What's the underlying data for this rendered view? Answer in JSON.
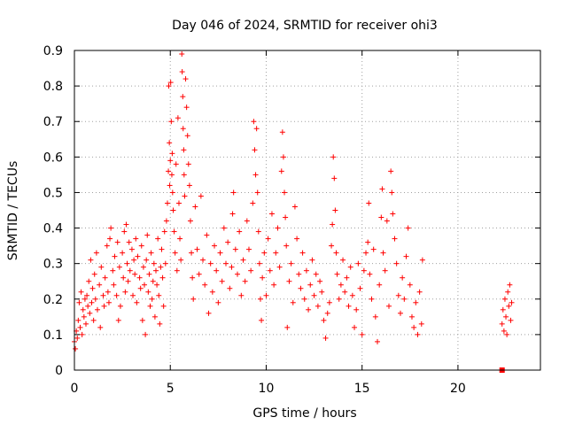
{
  "chart_data": {
    "type": "scatter",
    "title": "Day 046 of 2024, SRMTID for receiver ohi3",
    "xlabel": "GPS time / hours",
    "ylabel": "SRMTID / TECUs",
    "xlim": [
      0,
      24.3
    ],
    "ylim": [
      0,
      0.9
    ],
    "xticks": [
      0,
      5,
      10,
      15,
      20
    ],
    "xtick_labels": [
      "0",
      "5",
      "10",
      "15",
      "20"
    ],
    "yticks": [
      0,
      0.1,
      0.2,
      0.3,
      0.4,
      0.5,
      0.6,
      0.7,
      0.8,
      0.9
    ],
    "ytick_labels": [
      "0",
      "0.1",
      "0.2",
      "0.3",
      "0.4",
      "0.5",
      "0.6",
      "0.7",
      "0.8",
      "0.9"
    ],
    "grid": true,
    "marker": "+",
    "color": "#ff0000",
    "series": [
      {
        "name": "SRMTID",
        "points": [
          [
            0.0,
            0.08
          ],
          [
            0.05,
            0.06
          ],
          [
            0.1,
            0.11
          ],
          [
            0.15,
            0.09
          ],
          [
            0.2,
            0.14
          ],
          [
            0.25,
            0.19
          ],
          [
            0.3,
            0.12
          ],
          [
            0.35,
            0.22
          ],
          [
            0.4,
            0.1
          ],
          [
            0.45,
            0.17
          ],
          [
            0.5,
            0.15
          ],
          [
            0.55,
            0.2
          ],
          [
            0.6,
            0.13
          ],
          [
            0.65,
            0.21
          ],
          [
            0.7,
            0.18
          ],
          [
            0.75,
            0.25
          ],
          [
            0.8,
            0.16
          ],
          [
            0.85,
            0.31
          ],
          [
            0.9,
            0.19
          ],
          [
            0.95,
            0.23
          ],
          [
            1.0,
            0.14
          ],
          [
            1.05,
            0.27
          ],
          [
            1.1,
            0.2
          ],
          [
            1.15,
            0.33
          ],
          [
            1.2,
            0.17
          ],
          [
            1.3,
            0.24
          ],
          [
            1.35,
            0.12
          ],
          [
            1.4,
            0.29
          ],
          [
            1.5,
            0.21
          ],
          [
            1.55,
            0.18
          ],
          [
            1.6,
            0.26
          ],
          [
            1.7,
            0.35
          ],
          [
            1.75,
            0.22
          ],
          [
            1.8,
            0.19
          ],
          [
            1.85,
            0.37
          ],
          [
            1.9,
            0.4
          ],
          [
            2.0,
            0.28
          ],
          [
            2.05,
            0.24
          ],
          [
            2.1,
            0.32
          ],
          [
            2.2,
            0.21
          ],
          [
            2.25,
            0.36
          ],
          [
            2.3,
            0.14
          ],
          [
            2.35,
            0.29
          ],
          [
            2.4,
            0.18
          ],
          [
            2.5,
            0.33
          ],
          [
            2.55,
            0.26
          ],
          [
            2.6,
            0.39
          ],
          [
            2.65,
            0.22
          ],
          [
            2.7,
            0.41
          ],
          [
            2.75,
            0.3
          ],
          [
            2.8,
            0.25
          ],
          [
            2.85,
            0.36
          ],
          [
            2.9,
            0.28
          ],
          [
            3.0,
            0.34
          ],
          [
            3.05,
            0.21
          ],
          [
            3.1,
            0.31
          ],
          [
            3.15,
            0.27
          ],
          [
            3.2,
            0.37
          ],
          [
            3.25,
            0.19
          ],
          [
            3.3,
            0.32
          ],
          [
            3.4,
            0.26
          ],
          [
            3.45,
            0.23
          ],
          [
            3.5,
            0.35
          ],
          [
            3.55,
            0.14
          ],
          [
            3.6,
            0.29
          ],
          [
            3.65,
            0.24
          ],
          [
            3.7,
            0.1
          ],
          [
            3.75,
            0.31
          ],
          [
            3.8,
            0.38
          ],
          [
            3.85,
            0.22
          ],
          [
            3.9,
            0.27
          ],
          [
            3.95,
            0.18
          ],
          [
            4.0,
            0.33
          ],
          [
            4.05,
            0.2
          ],
          [
            4.1,
            0.25
          ],
          [
            4.15,
            0.3
          ],
          [
            4.2,
            0.15
          ],
          [
            4.25,
            0.28
          ],
          [
            4.3,
            0.24
          ],
          [
            4.35,
            0.37
          ],
          [
            4.4,
            0.21
          ],
          [
            4.45,
            0.13
          ],
          [
            4.5,
            0.29
          ],
          [
            4.55,
            0.34
          ],
          [
            4.6,
            0.26
          ],
          [
            4.65,
            0.18
          ],
          [
            4.7,
            0.39
          ],
          [
            4.75,
            0.3
          ],
          [
            4.8,
            0.42
          ],
          [
            4.85,
            0.47
          ],
          [
            4.9,
            0.56
          ],
          [
            4.92,
            0.8
          ],
          [
            4.95,
            0.64
          ],
          [
            4.97,
            0.52
          ],
          [
            5.0,
            0.59
          ],
          [
            5.02,
            0.81
          ],
          [
            5.05,
            0.7
          ],
          [
            5.08,
            0.55
          ],
          [
            5.1,
            0.61
          ],
          [
            5.12,
            0.5
          ],
          [
            5.15,
            0.45
          ],
          [
            5.2,
            0.39
          ],
          [
            5.25,
            0.33
          ],
          [
            5.3,
            0.58
          ],
          [
            5.35,
            0.28
          ],
          [
            5.4,
            0.71
          ],
          [
            5.45,
            0.47
          ],
          [
            5.5,
            0.37
          ],
          [
            5.55,
            0.31
          ],
          [
            5.6,
            0.89
          ],
          [
            5.62,
            0.84
          ],
          [
            5.65,
            0.77
          ],
          [
            5.67,
            0.68
          ],
          [
            5.7,
            0.62
          ],
          [
            5.72,
            0.55
          ],
          [
            5.75,
            0.49
          ],
          [
            5.8,
            0.82
          ],
          [
            5.85,
            0.74
          ],
          [
            5.9,
            0.66
          ],
          [
            5.95,
            0.58
          ],
          [
            6.0,
            0.52
          ],
          [
            6.05,
            0.42
          ],
          [
            6.1,
            0.33
          ],
          [
            6.15,
            0.26
          ],
          [
            6.2,
            0.2
          ],
          [
            6.3,
            0.46
          ],
          [
            6.4,
            0.34
          ],
          [
            6.5,
            0.27
          ],
          [
            6.6,
            0.49
          ],
          [
            6.7,
            0.31
          ],
          [
            6.8,
            0.24
          ],
          [
            6.9,
            0.38
          ],
          [
            7.0,
            0.16
          ],
          [
            7.1,
            0.3
          ],
          [
            7.2,
            0.22
          ],
          [
            7.3,
            0.35
          ],
          [
            7.4,
            0.28
          ],
          [
            7.5,
            0.19
          ],
          [
            7.6,
            0.33
          ],
          [
            7.7,
            0.25
          ],
          [
            7.8,
            0.4
          ],
          [
            7.9,
            0.3
          ],
          [
            8.0,
            0.36
          ],
          [
            8.1,
            0.23
          ],
          [
            8.2,
            0.29
          ],
          [
            8.25,
            0.44
          ],
          [
            8.3,
            0.5
          ],
          [
            8.4,
            0.34
          ],
          [
            8.5,
            0.27
          ],
          [
            8.6,
            0.39
          ],
          [
            8.7,
            0.21
          ],
          [
            8.8,
            0.31
          ],
          [
            8.9,
            0.25
          ],
          [
            9.0,
            0.42
          ],
          [
            9.1,
            0.34
          ],
          [
            9.2,
            0.28
          ],
          [
            9.3,
            0.47
          ],
          [
            9.35,
            0.7
          ],
          [
            9.4,
            0.62
          ],
          [
            9.45,
            0.55
          ],
          [
            9.5,
            0.68
          ],
          [
            9.55,
            0.5
          ],
          [
            9.6,
            0.39
          ],
          [
            9.65,
            0.3
          ],
          [
            9.7,
            0.2
          ],
          [
            9.75,
            0.14
          ],
          [
            9.8,
            0.26
          ],
          [
            9.9,
            0.33
          ],
          [
            10.0,
            0.21
          ],
          [
            10.1,
            0.37
          ],
          [
            10.2,
            0.28
          ],
          [
            10.3,
            0.44
          ],
          [
            10.4,
            0.24
          ],
          [
            10.5,
            0.33
          ],
          [
            10.6,
            0.4
          ],
          [
            10.7,
            0.29
          ],
          [
            10.8,
            0.56
          ],
          [
            10.85,
            0.67
          ],
          [
            10.9,
            0.6
          ],
          [
            10.95,
            0.5
          ],
          [
            11.0,
            0.43
          ],
          [
            11.05,
            0.35
          ],
          [
            11.1,
            0.12
          ],
          [
            11.2,
            0.25
          ],
          [
            11.3,
            0.3
          ],
          [
            11.4,
            0.19
          ],
          [
            11.5,
            0.46
          ],
          [
            11.6,
            0.37
          ],
          [
            11.7,
            0.27
          ],
          [
            11.8,
            0.23
          ],
          [
            11.9,
            0.33
          ],
          [
            12.0,
            0.2
          ],
          [
            12.1,
            0.28
          ],
          [
            12.2,
            0.17
          ],
          [
            12.3,
            0.24
          ],
          [
            12.4,
            0.31
          ],
          [
            12.5,
            0.21
          ],
          [
            12.6,
            0.27
          ],
          [
            12.7,
            0.18
          ],
          [
            12.8,
            0.25
          ],
          [
            12.9,
            0.22
          ],
          [
            13.0,
            0.14
          ],
          [
            13.1,
            0.09
          ],
          [
            13.2,
            0.16
          ],
          [
            13.3,
            0.19
          ],
          [
            13.4,
            0.35
          ],
          [
            13.45,
            0.41
          ],
          [
            13.5,
            0.6
          ],
          [
            13.55,
            0.54
          ],
          [
            13.6,
            0.45
          ],
          [
            13.65,
            0.33
          ],
          [
            13.7,
            0.27
          ],
          [
            13.8,
            0.2
          ],
          [
            13.9,
            0.24
          ],
          [
            14.0,
            0.31
          ],
          [
            14.1,
            0.22
          ],
          [
            14.2,
            0.26
          ],
          [
            14.3,
            0.18
          ],
          [
            14.4,
            0.29
          ],
          [
            14.5,
            0.21
          ],
          [
            14.6,
            0.12
          ],
          [
            14.7,
            0.17
          ],
          [
            14.8,
            0.3
          ],
          [
            14.9,
            0.23
          ],
          [
            15.0,
            0.1
          ],
          [
            15.1,
            0.28
          ],
          [
            15.2,
            0.33
          ],
          [
            15.3,
            0.36
          ],
          [
            15.35,
            0.47
          ],
          [
            15.4,
            0.27
          ],
          [
            15.5,
            0.2
          ],
          [
            15.6,
            0.34
          ],
          [
            15.7,
            0.15
          ],
          [
            15.8,
            0.08
          ],
          [
            15.9,
            0.24
          ],
          [
            16.0,
            0.43
          ],
          [
            16.05,
            0.51
          ],
          [
            16.1,
            0.33
          ],
          [
            16.2,
            0.28
          ],
          [
            16.3,
            0.42
          ],
          [
            16.4,
            0.18
          ],
          [
            16.5,
            0.56
          ],
          [
            16.55,
            0.5
          ],
          [
            16.6,
            0.44
          ],
          [
            16.7,
            0.37
          ],
          [
            16.8,
            0.3
          ],
          [
            16.9,
            0.21
          ],
          [
            17.0,
            0.16
          ],
          [
            17.1,
            0.26
          ],
          [
            17.2,
            0.2
          ],
          [
            17.3,
            0.32
          ],
          [
            17.4,
            0.4
          ],
          [
            17.5,
            0.24
          ],
          [
            17.6,
            0.15
          ],
          [
            17.7,
            0.12
          ],
          [
            17.8,
            0.19
          ],
          [
            17.9,
            0.1
          ],
          [
            18.0,
            0.22
          ],
          [
            18.1,
            0.13
          ],
          [
            18.15,
            0.31
          ],
          [
            22.3,
            0.13
          ],
          [
            22.35,
            0.17
          ],
          [
            22.4,
            0.11
          ],
          [
            22.45,
            0.2
          ],
          [
            22.5,
            0.15
          ],
          [
            22.55,
            0.1
          ],
          [
            22.6,
            0.22
          ],
          [
            22.65,
            0.18
          ],
          [
            22.7,
            0.24
          ],
          [
            22.75,
            0.14
          ],
          [
            22.8,
            0.19
          ]
        ]
      }
    ],
    "outlier_points": [
      [
        22.3,
        0.0
      ]
    ]
  }
}
